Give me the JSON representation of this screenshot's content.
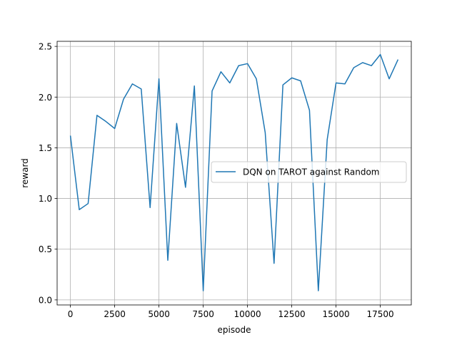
{
  "chart_data": {
    "type": "line",
    "xlabel": "episode",
    "ylabel": "reward",
    "xlim": [
      -750,
      19250
    ],
    "ylim": [
      -0.05,
      2.55
    ],
    "x_ticks": [
      0,
      2500,
      5000,
      7500,
      10000,
      12500,
      15000,
      17500
    ],
    "x_tick_labels": [
      "0",
      "2500",
      "5000",
      "7500",
      "10000",
      "12500",
      "15000",
      "17500"
    ],
    "y_ticks": [
      0.0,
      0.5,
      1.0,
      1.5,
      2.0,
      2.5
    ],
    "y_tick_labels": [
      "0.0",
      "0.5",
      "1.0",
      "1.5",
      "2.0",
      "2.5"
    ],
    "grid": true,
    "legend_position": "right",
    "series": [
      {
        "name": "DQN on TAROT against Random",
        "color": "#1f77b4",
        "x": [
          0,
          500,
          1000,
          1500,
          2000,
          2500,
          3000,
          3500,
          4000,
          4500,
          5000,
          5500,
          6000,
          6500,
          7000,
          7500,
          8000,
          8500,
          9000,
          9500,
          10000,
          10500,
          11000,
          11500,
          12000,
          12500,
          13000,
          13500,
          14000,
          14500,
          15000,
          15500,
          16000,
          16500,
          17000,
          17500,
          18000,
          18500
        ],
        "values": [
          1.62,
          0.89,
          0.95,
          1.82,
          1.76,
          1.69,
          1.98,
          2.13,
          2.08,
          0.91,
          2.18,
          0.39,
          1.74,
          1.11,
          2.11,
          0.09,
          2.06,
          2.25,
          2.14,
          2.31,
          2.33,
          2.18,
          1.65,
          0.36,
          2.12,
          2.19,
          2.16,
          1.87,
          0.09,
          1.58,
          2.14,
          2.13,
          2.29,
          2.34,
          2.31,
          2.42,
          2.18,
          2.37
        ]
      }
    ]
  }
}
